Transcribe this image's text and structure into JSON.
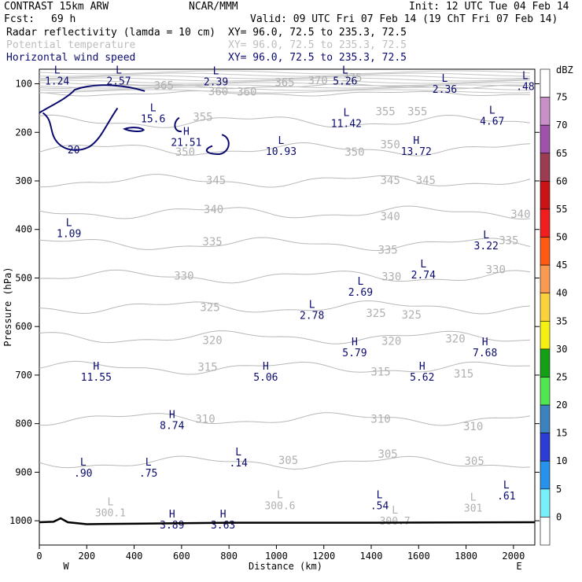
{
  "header": {
    "model": "CONTRAST 15km ARW",
    "center": "NCAR/MMM",
    "init": "Init: 12 UTC Tue 04 Feb 14",
    "fcst_label": "Fcst:",
    "fcst_value": "69 h",
    "valid": "Valid: 09 UTC Fri 07 Feb 14 (19 ChT Fri 07 Feb 14)",
    "fields": [
      {
        "name": "Radar reflectivity (lamda = 10 cm)",
        "xy": "XY=  96.0, 72.5 to 235.3, 72.5",
        "color": "#000000"
      },
      {
        "name": "Potential temperature",
        "xy": "XY=  96.0, 72.5 to 235.3, 72.5",
        "color": "#bdbdbd"
      },
      {
        "name": "Horizontal wind speed",
        "xy": "XY=  96.0, 72.5 to 235.3, 72.5",
        "color": "#0a0a6e"
      }
    ]
  },
  "chart_data": {
    "type": "contour",
    "xlabel": "Distance (km)",
    "ylabel": "Pressure (hPa)",
    "xlim": [
      0,
      2090
    ],
    "ylim": [
      1050,
      70
    ],
    "x_ticks": [
      0,
      200,
      400,
      600,
      800,
      1000,
      1200,
      1400,
      1600,
      1800,
      2000
    ],
    "y_ticks": [
      100,
      200,
      300,
      400,
      500,
      600,
      700,
      800,
      900,
      1000
    ],
    "x_end_labels": {
      "left": "W",
      "right": "E"
    },
    "theta_levels": [
      {
        "value": 305,
        "p": 880
      },
      {
        "value": 310,
        "p": 790
      },
      {
        "value": 315,
        "p": 685
      },
      {
        "value": 320,
        "p": 622
      },
      {
        "value": 325,
        "p": 560
      },
      {
        "value": 330,
        "p": 497
      },
      {
        "value": 335,
        "p": 430
      },
      {
        "value": 340,
        "p": 365
      },
      {
        "value": 345,
        "p": 300
      },
      {
        "value": 350,
        "p": 235
      },
      {
        "value": 355,
        "p": 178
      },
      {
        "value": 360,
        "p": 120
      },
      {
        "value": 365,
        "p": 105
      }
    ],
    "theta_labels": [
      {
        "text": "305",
        "x": 1050,
        "p": 875
      },
      {
        "text": "305",
        "x": 1470,
        "p": 862
      },
      {
        "text": "305",
        "x": 1835,
        "p": 877
      },
      {
        "text": "310",
        "x": 700,
        "p": 790
      },
      {
        "text": "310",
        "x": 1440,
        "p": 790
      },
      {
        "text": "310",
        "x": 1830,
        "p": 805
      },
      {
        "text": "315",
        "x": 710,
        "p": 683
      },
      {
        "text": "315",
        "x": 1440,
        "p": 693
      },
      {
        "text": "315",
        "x": 1790,
        "p": 697
      },
      {
        "text": "320",
        "x": 730,
        "p": 628
      },
      {
        "text": "320",
        "x": 1485,
        "p": 630
      },
      {
        "text": "320",
        "x": 1755,
        "p": 625
      },
      {
        "text": "325",
        "x": 720,
        "p": 560
      },
      {
        "text": "325",
        "x": 1420,
        "p": 572
      },
      {
        "text": "325",
        "x": 1570,
        "p": 575
      },
      {
        "text": "330",
        "x": 610,
        "p": 495
      },
      {
        "text": "330",
        "x": 1485,
        "p": 497
      },
      {
        "text": "330",
        "x": 1925,
        "p": 482
      },
      {
        "text": "335",
        "x": 730,
        "p": 425
      },
      {
        "text": "335",
        "x": 1470,
        "p": 442
      },
      {
        "text": "335",
        "x": 1980,
        "p": 422
      },
      {
        "text": "340",
        "x": 735,
        "p": 358
      },
      {
        "text": "340",
        "x": 1480,
        "p": 373
      },
      {
        "text": "340",
        "x": 2030,
        "p": 368
      },
      {
        "text": "345",
        "x": 745,
        "p": 298
      },
      {
        "text": "345",
        "x": 1480,
        "p": 298
      },
      {
        "text": "345",
        "x": 1630,
        "p": 298
      },
      {
        "text": "350",
        "x": 615,
        "p": 240
      },
      {
        "text": "350",
        "x": 1330,
        "p": 240
      },
      {
        "text": "350",
        "x": 1480,
        "p": 225
      },
      {
        "text": "355",
        "x": 690,
        "p": 168
      },
      {
        "text": "355",
        "x": 1460,
        "p": 157
      },
      {
        "text": "355",
        "x": 1595,
        "p": 157
      },
      {
        "text": "360",
        "x": 755,
        "p": 115
      },
      {
        "text": "360",
        "x": 875,
        "p": 116
      },
      {
        "text": "365",
        "x": 525,
        "p": 103
      },
      {
        "text": "365",
        "x": 1035,
        "p": 97
      },
      {
        "text": "370",
        "x": 1175,
        "p": 93
      },
      {
        "text": "375",
        "x": 1320,
        "p": 87
      }
    ],
    "wind_extrema": [
      {
        "type": "L",
        "value": "1.24",
        "x": 75,
        "p": 85
      },
      {
        "type": "L",
        "value": "2.57",
        "x": 335,
        "p": 85
      },
      {
        "type": "L",
        "value": "2.39",
        "x": 745,
        "p": 87
      },
      {
        "type": "L",
        "value": "5.26",
        "x": 1290,
        "p": 85
      },
      {
        "type": "L",
        "value": "2.36",
        "x": 1710,
        "p": 102
      },
      {
        "type": "L",
        "value": ".48",
        "x": 2050,
        "p": 97
      },
      {
        "type": "L",
        "value": "15.6",
        "x": 480,
        "p": 163
      },
      {
        "type": "H",
        "value": "21.51",
        "x": 620,
        "p": 212
      },
      {
        "type": "L",
        "value": "11.42",
        "x": 1295,
        "p": 173
      },
      {
        "type": "L",
        "value": "4.67",
        "x": 1910,
        "p": 168
      },
      {
        "type": "L",
        "value": "10.93",
        "x": 1020,
        "p": 230
      },
      {
        "type": "H",
        "value": "13.72",
        "x": 1590,
        "p": 230
      },
      {
        "type": "L",
        "value": "1.09",
        "x": 125,
        "p": 400
      },
      {
        "type": "L",
        "value": "3.22",
        "x": 1885,
        "p": 425
      },
      {
        "type": "L",
        "value": "2.74",
        "x": 1620,
        "p": 485
      },
      {
        "type": "L",
        "value": "2.69",
        "x": 1355,
        "p": 520
      },
      {
        "type": "L",
        "value": "2.78",
        "x": 1150,
        "p": 568
      },
      {
        "type": "H",
        "value": "5.79",
        "x": 1330,
        "p": 645
      },
      {
        "type": "H",
        "value": "7.68",
        "x": 1880,
        "p": 645
      },
      {
        "type": "H",
        "value": "11.55",
        "x": 240,
        "p": 695
      },
      {
        "type": "H",
        "value": "5.06",
        "x": 955,
        "p": 695
      },
      {
        "type": "H",
        "value": "5.62",
        "x": 1615,
        "p": 695
      },
      {
        "type": "H",
        "value": "8.74",
        "x": 560,
        "p": 795
      },
      {
        "type": "L",
        "value": ".14",
        "x": 840,
        "p": 872
      },
      {
        "type": "L",
        "value": ".90",
        "x": 185,
        "p": 893
      },
      {
        "type": "L",
        "value": ".75",
        "x": 460,
        "p": 893
      },
      {
        "type": "L",
        "value": ".61",
        "x": 1970,
        "p": 940
      },
      {
        "type": "L",
        "value": ".54",
        "x": 1435,
        "p": 960
      },
      {
        "type": "H",
        "value": "3.89",
        "x": 560,
        "p": 1000
      },
      {
        "type": "H",
        "value": "3.63",
        "x": 775,
        "p": 1000
      }
    ],
    "theta_extrema": [
      {
        "type": "L",
        "value": "300.1",
        "x": 300,
        "p": 975
      },
      {
        "type": "L",
        "value": "300.6",
        "x": 1015,
        "p": 960
      },
      {
        "type": "L",
        "value": "300.7",
        "x": 1500,
        "p": 992
      },
      {
        "type": "L",
        "value": "301",
        "x": 1830,
        "p": 965
      }
    ],
    "wind_contours": [
      {
        "label": "20",
        "x": 145,
        "p": 235
      }
    ],
    "colorbar": {
      "unit": "dBZ",
      "levels": [
        75,
        70,
        65,
        60,
        55,
        50,
        45,
        40,
        35,
        30,
        25,
        20,
        15,
        10,
        5,
        0
      ],
      "colors": [
        "#ffffff",
        "#c88fc8",
        "#9e52a9",
        "#9b3c52",
        "#c81414",
        "#f01e1e",
        "#ff5a14",
        "#fa9a50",
        "#fad23c",
        "#f5f014",
        "#14a014",
        "#50e650",
        "#3c82be",
        "#2d3cd2",
        "#2891eb",
        "#78f0fa",
        "#ffffff"
      ]
    }
  }
}
